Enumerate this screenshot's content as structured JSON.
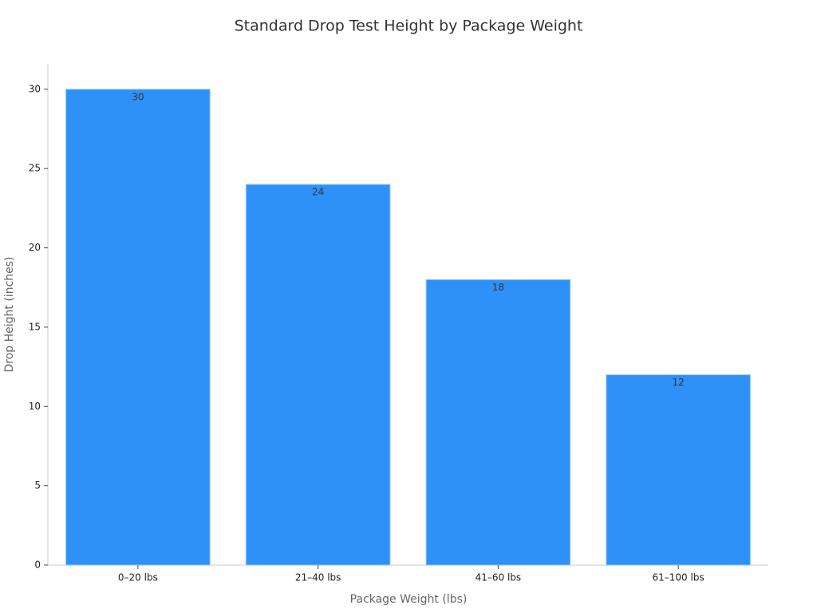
{
  "chart_data": {
    "type": "bar",
    "title": "Standard Drop Test Height by Package Weight",
    "x_label": "Package Weight (lbs)",
    "y_label": "Drop Height (inches)",
    "categories": [
      "0–20 lbs",
      "21–40 lbs",
      "41–60 lbs",
      "61–100 lbs"
    ],
    "values": [
      30,
      24,
      18,
      12
    ],
    "color": "#2e91f8",
    "ylim": [
      0,
      31.6
    ],
    "yticks": [
      0,
      5,
      10,
      15,
      20,
      25,
      30
    ],
    "grid": false
  }
}
